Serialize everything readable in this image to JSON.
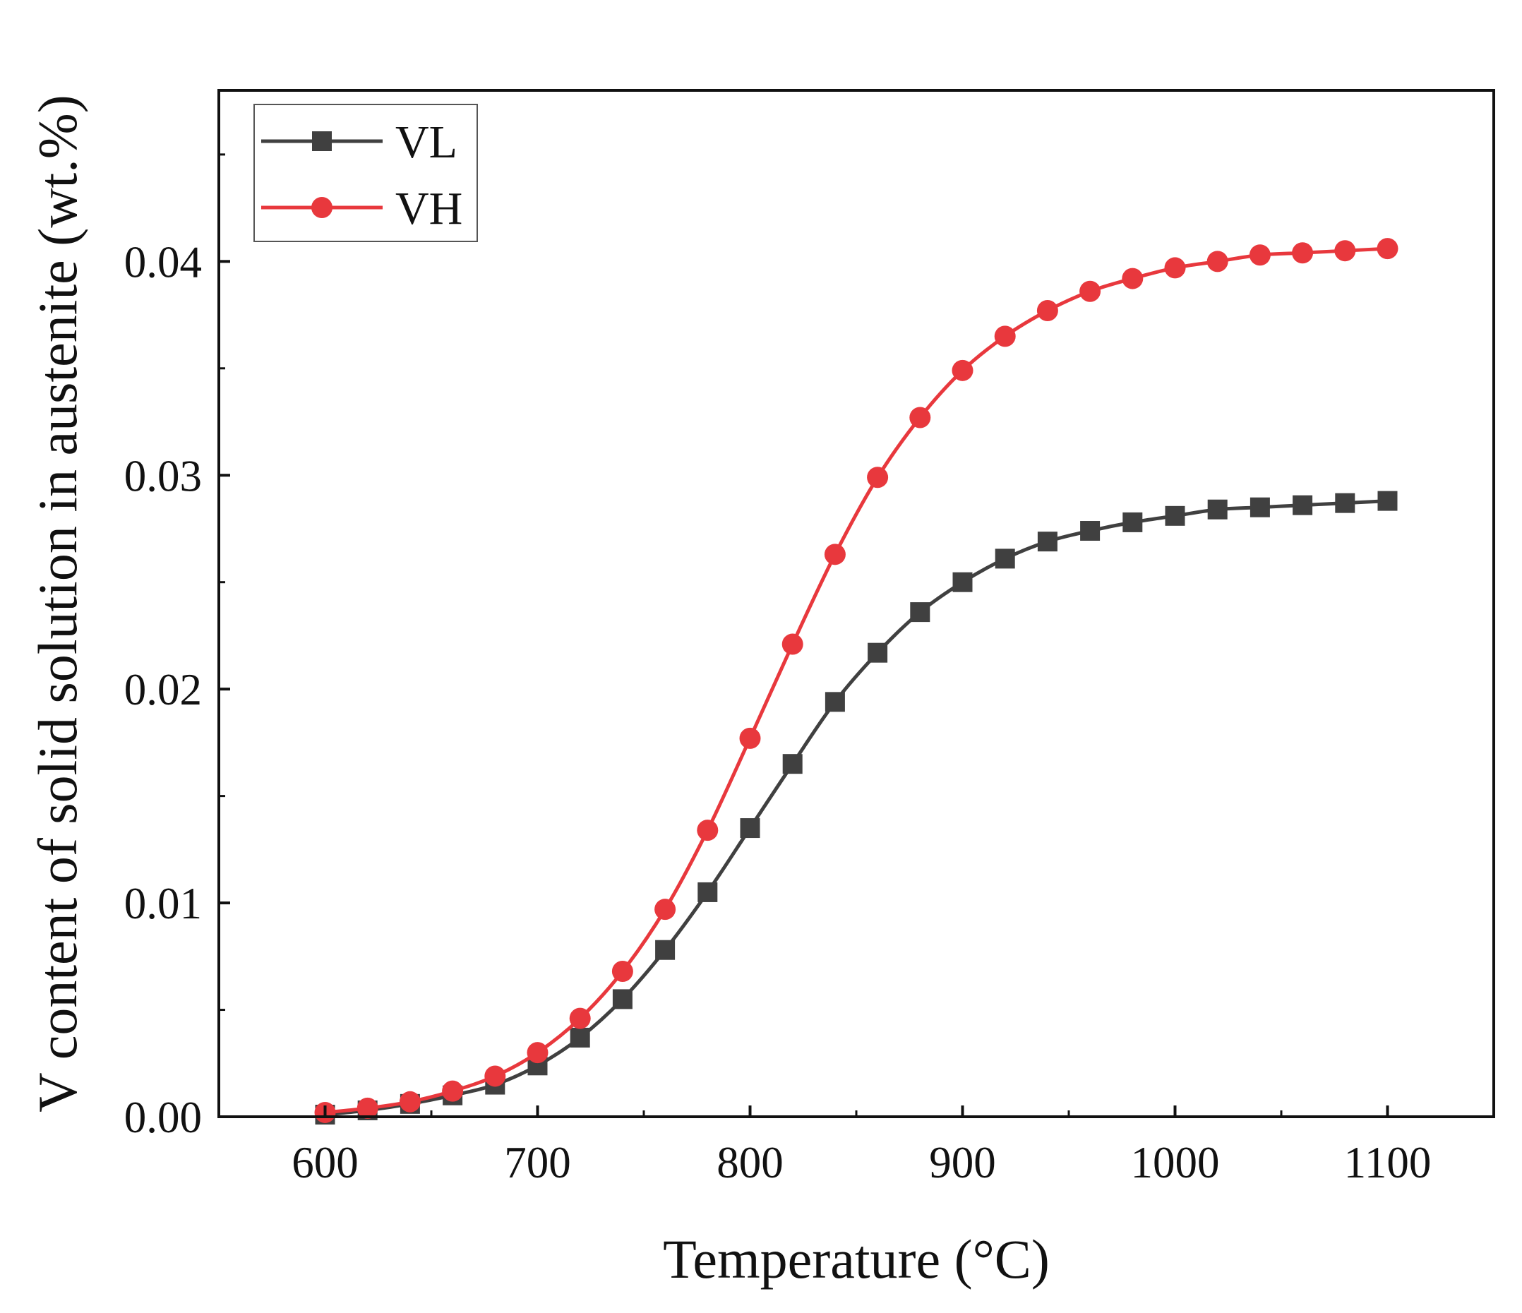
{
  "chart_data": {
    "type": "line",
    "title": "",
    "xlabel": "Temperature (°C)",
    "ylabel": "V content of solid solution in austenite (wt.%)",
    "xlim": [
      550,
      1150
    ],
    "ylim": [
      0.0,
      0.048
    ],
    "xticks": [
      600,
      700,
      800,
      900,
      1000,
      1100
    ],
    "xtick_labels": [
      "600",
      "700",
      "800",
      "900",
      "1000",
      "1100"
    ],
    "yticks": [
      0.0,
      0.01,
      0.02,
      0.03,
      0.04
    ],
    "ytick_labels": [
      "0.00",
      "0.01",
      "0.02",
      "0.03",
      "0.04"
    ],
    "grid": false,
    "legend_position": "top-left",
    "x": [
      600,
      620,
      640,
      660,
      680,
      700,
      720,
      740,
      760,
      780,
      800,
      820,
      840,
      860,
      880,
      900,
      920,
      940,
      960,
      980,
      1000,
      1020,
      1040,
      1060,
      1080,
      1100
    ],
    "series": [
      {
        "name": "VL",
        "color": "#404040",
        "marker": "square",
        "values": [
          0.0001,
          0.0003,
          0.0006,
          0.001,
          0.0015,
          0.0024,
          0.0037,
          0.0055,
          0.0078,
          0.0105,
          0.0135,
          0.0165,
          0.0194,
          0.0217,
          0.0236,
          0.025,
          0.0261,
          0.0269,
          0.0274,
          0.0278,
          0.0281,
          0.0284,
          0.0285,
          0.0286,
          0.0287,
          0.0288
        ]
      },
      {
        "name": "VH",
        "color": "#e8383d",
        "marker": "circle",
        "values": [
          0.0002,
          0.0004,
          0.0007,
          0.0012,
          0.0019,
          0.003,
          0.0046,
          0.0068,
          0.0097,
          0.0134,
          0.0177,
          0.0221,
          0.0263,
          0.0299,
          0.0327,
          0.0349,
          0.0365,
          0.0377,
          0.0386,
          0.0392,
          0.0397,
          0.04,
          0.0403,
          0.0404,
          0.0405,
          0.0406
        ]
      }
    ]
  }
}
